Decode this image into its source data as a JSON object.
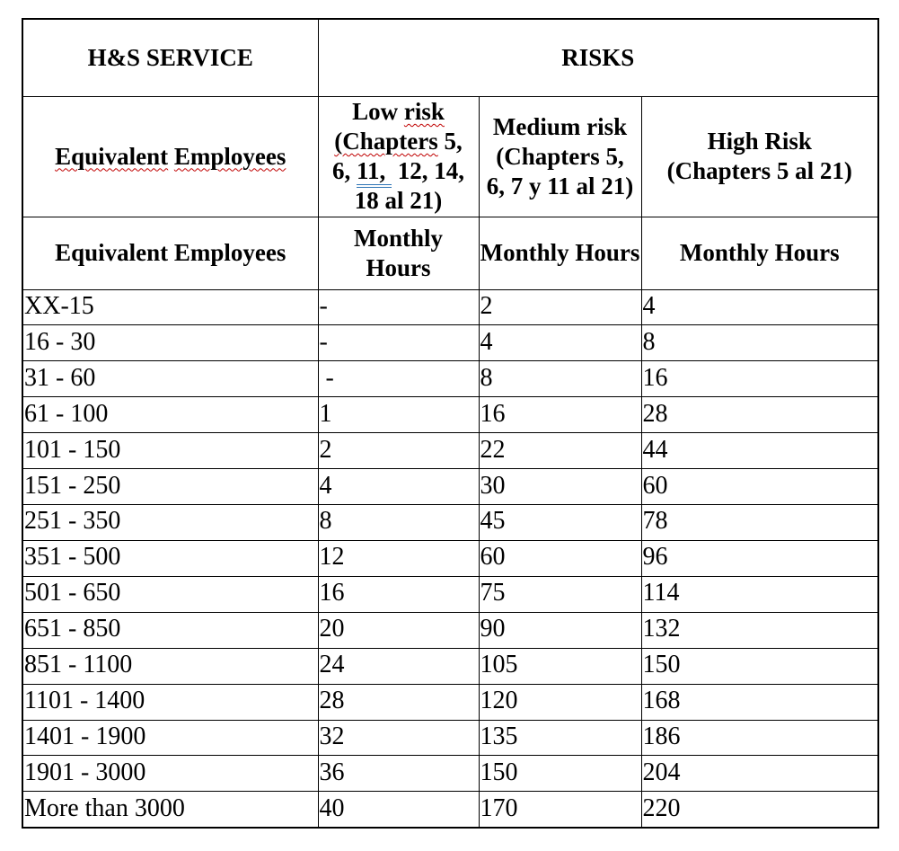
{
  "table": {
    "header_row1": {
      "service": "H&S SERVICE",
      "risks": "RISKS"
    },
    "header_row2": {
      "employees_word1": "Equivalent",
      "employees_word2": "Employees",
      "low_risk": {
        "l1_pre": "Low ",
        "l1_marked": "risk",
        "l2_marked": "(Chapters",
        "l2_post": " 5,",
        "l3_pre": "6, ",
        "l3_marked": "11, ",
        "l3_post": " 12, 14,",
        "l4": "18 al 21)"
      },
      "medium_risk": {
        "l1": "Medium risk",
        "l2": "(Chapters 5,",
        "l3": "6, 7 y 11 al 21)"
      },
      "high_risk": {
        "l1": "High Risk",
        "l2": "(Chapters 5 al 21)"
      }
    },
    "header_row3": {
      "employees": "Equivalent Employees",
      "monthly_hours": "Monthly Hours"
    },
    "column_keys": [
      "employees",
      "low",
      "medium",
      "high"
    ],
    "rows": [
      {
        "employees": "XX-15",
        "low": "-",
        "medium": "2",
        "high": "4"
      },
      {
        "employees": "16 - 30",
        "low": "-",
        "medium": "4",
        "high": "8"
      },
      {
        "employees": "31 - 60",
        "low": " -",
        "medium": "8",
        "high": "16"
      },
      {
        "employees": "61 - 100",
        "low": "1",
        "medium": "16",
        "high": "28"
      },
      {
        "employees": "101 - 150",
        "low": "2",
        "medium": "22",
        "high": "44"
      },
      {
        "employees": "151 - 250",
        "low": "4",
        "medium": "30",
        "high": "60"
      },
      {
        "employees": "251 - 350",
        "low": "8",
        "medium": "45",
        "high": "78"
      },
      {
        "employees": "351 - 500",
        "low": "12",
        "medium": "60",
        "high": "96"
      },
      {
        "employees": "501 - 650",
        "low": "16",
        "medium": "75",
        "high": "114"
      },
      {
        "employees": "651 - 850",
        "low": "20",
        "medium": "90",
        "high": "132"
      },
      {
        "employees": "851 - 1100",
        "low": "24",
        "medium": "105",
        "high": "150"
      },
      {
        "employees": "1101 - 1400",
        "low": "28",
        "medium": "120",
        "high": "168"
      },
      {
        "employees": "1401 - 1900",
        "low": "32",
        "medium": "135",
        "high": "186"
      },
      {
        "employees": "1901 - 3000",
        "low": "36",
        "medium": "150",
        "high": "204"
      },
      {
        "employees": "More than 3000",
        "low": "40",
        "medium": "170",
        "high": "220"
      }
    ],
    "colors": {
      "text": "#000000",
      "border": "#000000",
      "background": "#FFFFFF",
      "spellcheck_red": "#C00000",
      "grammar_blue": "#2E74B5"
    }
  }
}
